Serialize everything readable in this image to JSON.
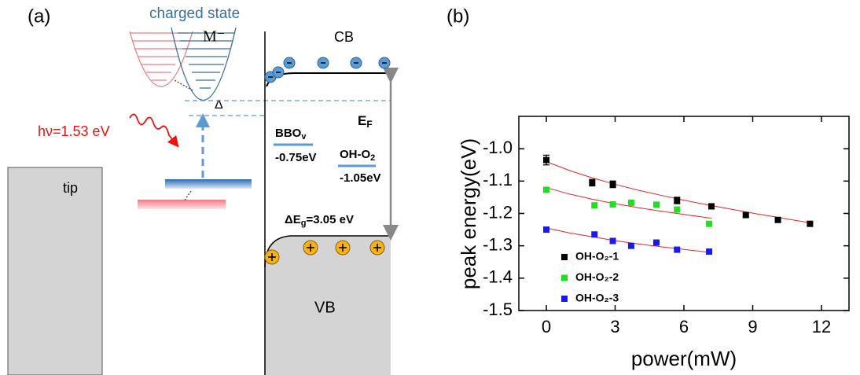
{
  "panel_a": {
    "label": "(a)",
    "charged_state": "charged state",
    "ion": "M⁻",
    "cb": "CB",
    "vb": "VB",
    "gap_symbol": "Δ",
    "fermi": {
      "main": "E",
      "sub": "F"
    },
    "photon": "hν=1.53 eV",
    "bbo": {
      "main": "BBO",
      "sub": "v",
      "energy": "-0.75eV"
    },
    "oho2": {
      "main": "OH-O",
      "sub": "2",
      "energy": "-1.05eV"
    },
    "band_gap": {
      "main": "ΔE",
      "sub": "g",
      "rest": "=3.05 eV"
    },
    "tip": "tip"
  },
  "chart_data": {
    "type": "scatter",
    "panel_label": "(b)",
    "xlabel": "power(mW)",
    "ylabel": "peak energy(eV)",
    "xlim": [
      -1.2,
      13.2
    ],
    "ylim": [
      -1.5,
      -0.9
    ],
    "xticks": [
      0,
      3,
      6,
      9,
      12
    ],
    "yticks": [
      {
        "value": -1,
        "label": "-1.0"
      },
      -1.1,
      -1.2,
      -1.3,
      -1.4,
      -1.5
    ],
    "legend": "lower left",
    "series": [
      {
        "name": "OH-O₂-1",
        "color": "#000000",
        "x": [
          0,
          2,
          2.9,
          5.7,
          7.2,
          8.7,
          10.1,
          11.5
        ],
        "values": [
          -1.035,
          -1.105,
          -1.11,
          -1.16,
          -1.178,
          -1.205,
          -1.22,
          -1.232
        ],
        "errors": [
          0.015,
          0.01,
          0.01,
          0.01,
          0.008,
          0.005,
          0.005,
          0.005
        ]
      },
      {
        "name": "OH-O₂-2",
        "color": "#22dd22",
        "x": [
          0,
          2.1,
          2.9,
          3.7,
          4.8,
          5.7,
          7.1
        ],
        "values": [
          -1.127,
          -1.175,
          -1.172,
          -1.167,
          -1.173,
          -1.188,
          -1.232
        ]
      },
      {
        "name": "OH-O₂-3",
        "color": "#1a1aee",
        "x": [
          0,
          2.1,
          2.9,
          3.7,
          4.8,
          5.7,
          7.1
        ],
        "values": [
          -1.25,
          -1.265,
          -1.285,
          -1.3,
          -1.29,
          -1.312,
          -1.318
        ]
      }
    ],
    "fits": [
      {
        "color": "#ee2222",
        "x": [
          0,
          1,
          2,
          3,
          4,
          5,
          6,
          7,
          8,
          9,
          10,
          11,
          11.6
        ],
        "values": [
          -1.04,
          -1.067,
          -1.09,
          -1.11,
          -1.128,
          -1.144,
          -1.159,
          -1.173,
          -1.186,
          -1.199,
          -1.211,
          -1.223,
          -1.23
        ]
      },
      {
        "color": "#ee2222",
        "x": [
          0,
          1,
          2,
          3,
          4,
          5,
          6,
          7.2
        ],
        "values": [
          -1.12,
          -1.14,
          -1.156,
          -1.17,
          -1.182,
          -1.193,
          -1.203,
          -1.215
        ]
      },
      {
        "color": "#ee2222",
        "x": [
          0,
          1,
          2,
          3,
          4,
          5,
          6,
          7.1
        ],
        "values": [
          -1.245,
          -1.26,
          -1.272,
          -1.284,
          -1.294,
          -1.303,
          -1.311,
          -1.32
        ]
      }
    ]
  }
}
